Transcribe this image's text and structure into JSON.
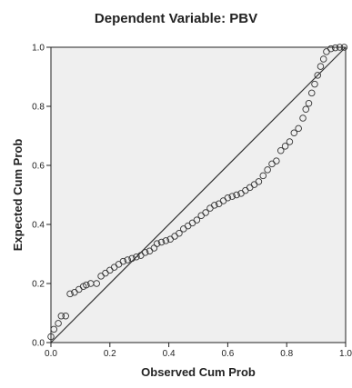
{
  "chart_data": {
    "type": "scatter",
    "title": "Dependent Variable: PBV",
    "xlabel": "Observed Cum Prob",
    "ylabel": "Expected Cum Prob",
    "xlim": [
      0.0,
      1.0
    ],
    "ylim": [
      0.0,
      1.0
    ],
    "x_ticks": [
      "0.0",
      "0.2",
      "0.4",
      "0.6",
      "0.8",
      "1.0"
    ],
    "y_ticks": [
      "0.0",
      "0.2",
      "0.4",
      "0.6",
      "0.8",
      "1.0"
    ],
    "grid": false,
    "legend": "none",
    "reference_line": {
      "from": [
        0,
        0
      ],
      "to": [
        1,
        1
      ]
    },
    "colors": {
      "plot_background": "#efefef",
      "points": "#333333",
      "line": "#333333"
    },
    "points": [
      [
        0.0,
        0.02
      ],
      [
        0.01,
        0.045
      ],
      [
        0.025,
        0.065
      ],
      [
        0.035,
        0.09
      ],
      [
        0.05,
        0.09
      ],
      [
        0.065,
        0.165
      ],
      [
        0.08,
        0.17
      ],
      [
        0.095,
        0.18
      ],
      [
        0.11,
        0.19
      ],
      [
        0.12,
        0.195
      ],
      [
        0.135,
        0.2
      ],
      [
        0.155,
        0.2
      ],
      [
        0.17,
        0.225
      ],
      [
        0.185,
        0.235
      ],
      [
        0.2,
        0.245
      ],
      [
        0.215,
        0.255
      ],
      [
        0.23,
        0.265
      ],
      [
        0.245,
        0.275
      ],
      [
        0.26,
        0.28
      ],
      [
        0.275,
        0.285
      ],
      [
        0.29,
        0.29
      ],
      [
        0.305,
        0.295
      ],
      [
        0.32,
        0.305
      ],
      [
        0.335,
        0.31
      ],
      [
        0.35,
        0.32
      ],
      [
        0.36,
        0.335
      ],
      [
        0.375,
        0.34
      ],
      [
        0.39,
        0.345
      ],
      [
        0.405,
        0.35
      ],
      [
        0.42,
        0.36
      ],
      [
        0.435,
        0.37
      ],
      [
        0.45,
        0.385
      ],
      [
        0.465,
        0.395
      ],
      [
        0.48,
        0.405
      ],
      [
        0.495,
        0.415
      ],
      [
        0.51,
        0.43
      ],
      [
        0.525,
        0.44
      ],
      [
        0.54,
        0.455
      ],
      [
        0.555,
        0.465
      ],
      [
        0.57,
        0.47
      ],
      [
        0.585,
        0.48
      ],
      [
        0.6,
        0.49
      ],
      [
        0.615,
        0.495
      ],
      [
        0.63,
        0.5
      ],
      [
        0.645,
        0.505
      ],
      [
        0.66,
        0.515
      ],
      [
        0.675,
        0.525
      ],
      [
        0.69,
        0.535
      ],
      [
        0.705,
        0.545
      ],
      [
        0.72,
        0.565
      ],
      [
        0.735,
        0.585
      ],
      [
        0.75,
        0.605
      ],
      [
        0.765,
        0.615
      ],
      [
        0.78,
        0.65
      ],
      [
        0.795,
        0.665
      ],
      [
        0.81,
        0.68
      ],
      [
        0.825,
        0.71
      ],
      [
        0.84,
        0.725
      ],
      [
        0.855,
        0.76
      ],
      [
        0.865,
        0.79
      ],
      [
        0.875,
        0.81
      ],
      [
        0.885,
        0.845
      ],
      [
        0.895,
        0.875
      ],
      [
        0.905,
        0.905
      ],
      [
        0.915,
        0.935
      ],
      [
        0.925,
        0.96
      ],
      [
        0.935,
        0.985
      ],
      [
        0.95,
        0.995
      ],
      [
        0.965,
        0.998
      ],
      [
        0.98,
        1.0
      ],
      [
        0.995,
        1.0
      ]
    ]
  }
}
